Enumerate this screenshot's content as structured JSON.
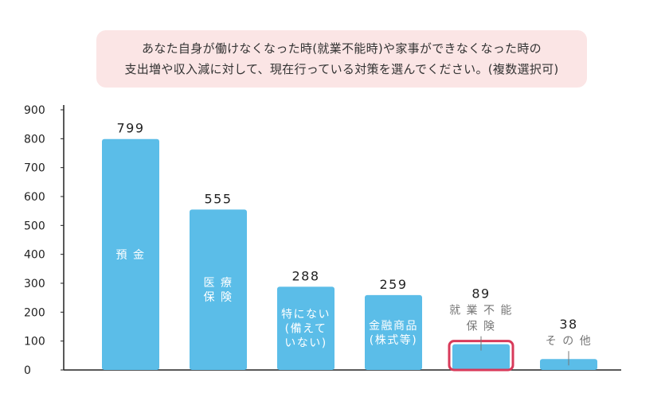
{
  "question": {
    "line1": "あなた自身が働けなくなった時(就業不能時)や家事ができなくなった時の",
    "line2": "支出増や収入減に対して、現在行っている対策を選んでください。(複数選択可)"
  },
  "colors": {
    "bar": "#5bbde8",
    "highlight_border": "#d83a5a",
    "question_bg": "#fbe5e5",
    "axis": "#222222",
    "label_inside": "#ffffff",
    "label_outside": "#777777"
  },
  "chart_data": {
    "type": "bar",
    "title": "",
    "xlabel": "",
    "ylabel": "",
    "ylim": [
      0,
      900
    ],
    "yticks": [
      0,
      100,
      200,
      300,
      400,
      500,
      600,
      700,
      800,
      900
    ],
    "grid": false,
    "categories": [
      [
        "預 金"
      ],
      [
        "医 療",
        "保 険"
      ],
      [
        "特にない",
        "(備えて",
        "いない)"
      ],
      [
        "金融商品",
        "(株式等)"
      ],
      [
        "就 業 不 能",
        "保 険"
      ],
      [
        "そ の 他"
      ]
    ],
    "values": [
      799,
      555,
      288,
      259,
      89,
      38
    ],
    "label_position": [
      "inside",
      "inside",
      "inside",
      "inside",
      "outside",
      "outside"
    ],
    "highlighted_index": 4
  }
}
